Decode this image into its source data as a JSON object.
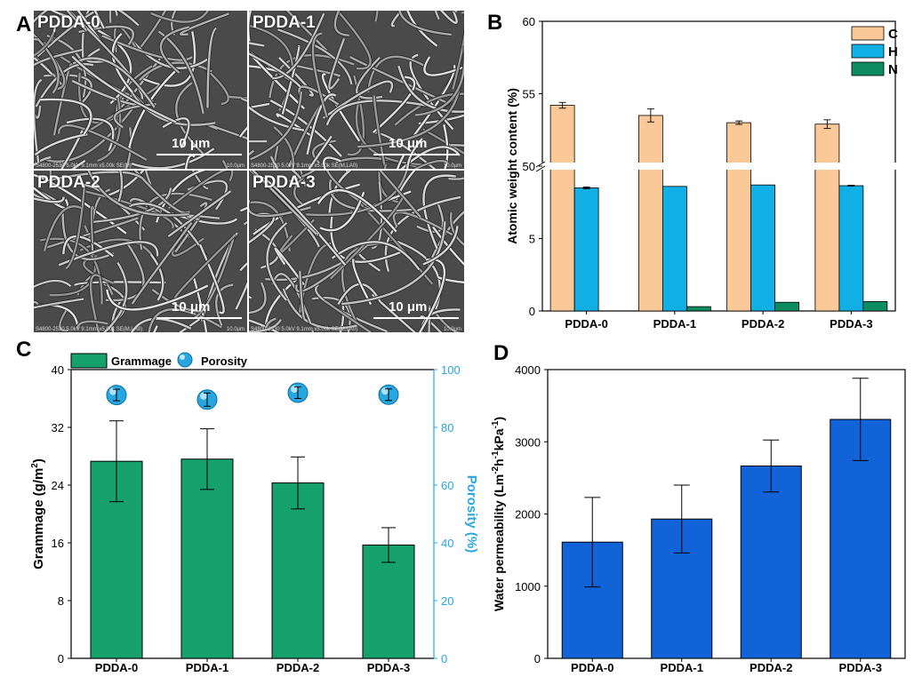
{
  "panel_letters": {
    "a": "A",
    "b": "B",
    "c": "C",
    "d": "D"
  },
  "sem": {
    "tiles": [
      {
        "label": "PDDA-0",
        "scale": "10 μm",
        "footer": "S4800-2530 5.0kV 9.1mm x5.00k SE(M)",
        "footer_right": "10.0μm"
      },
      {
        "label": "PDDA-1",
        "scale": "10 μm",
        "footer": "S4800-2530 5.0kV 9.1mm x5.00k SE(M,LA0)",
        "footer_right": "10.0μm"
      },
      {
        "label": "PDDA-2",
        "scale": "10 μm",
        "footer": "S4800-2530 5.0kV 9.1mm x5.00k SE(M,LA0)",
        "footer_right": "10.0μm"
      },
      {
        "label": "PDDA-3",
        "scale": "10 μm",
        "footer": "S4800-2530 5.0kV 9.1mm x5.00k SE(M,LA0)",
        "footer_right": "10.0μm"
      }
    ]
  },
  "chart_data": [
    {
      "id": "B",
      "type": "bar",
      "categories": [
        "PDDA-0",
        "PDDA-1",
        "PDDA-2",
        "PDDA-3"
      ],
      "ylabel": "Atomic weight content (%)",
      "broken_axis": {
        "lower": [
          0,
          10
        ],
        "upper": [
          50,
          60
        ]
      },
      "yticks_lower": [
        0,
        5
      ],
      "yticks_upper": [
        50,
        55,
        60
      ],
      "legend_position": "top-right",
      "series": [
        {
          "name": "C",
          "color": "#FBC898",
          "values": [
            54.2,
            53.5,
            53.0,
            52.9
          ],
          "errors": [
            0.2,
            0.45,
            0.12,
            0.3
          ]
        },
        {
          "name": "H",
          "color": "#10B0E6",
          "values": [
            8.5,
            8.6,
            8.7,
            8.65
          ],
          "errors": [
            0.06,
            0,
            0,
            0.03
          ]
        },
        {
          "name": "N",
          "color": "#0D8C62",
          "values": [
            0.0,
            0.3,
            0.6,
            0.65
          ],
          "errors": [
            0,
            0,
            0,
            0
          ]
        }
      ]
    },
    {
      "id": "C",
      "type": "bar",
      "categories": [
        "PDDA-0",
        "PDDA-1",
        "PDDA-2",
        "PDDA-3"
      ],
      "ylabel": "Grammage (g/m²)",
      "ylabel_main": "Grammage (g/m",
      "ylabel_sup": "2",
      "ylabel_close": ")",
      "ylim": [
        0,
        40
      ],
      "yticks": [
        0,
        8,
        16,
        24,
        32,
        40
      ],
      "y2label": "Porosity (%)",
      "y2lim": [
        0,
        100
      ],
      "y2ticks": [
        0,
        20,
        40,
        60,
        80,
        100
      ],
      "legend_position": "top-left",
      "series": [
        {
          "name": "Grammage",
          "color": "#16A06C",
          "values": [
            27.3,
            27.6,
            24.3,
            15.7
          ],
          "errors": [
            5.6,
            4.2,
            3.6,
            2.4
          ]
        },
        {
          "name": "Porosity",
          "color": "#28A6DF",
          "axis": "right",
          "values": [
            91.2,
            89.6,
            92.0,
            91.3
          ],
          "errors": [
            2.0,
            2.3,
            2.0,
            2.0
          ]
        }
      ]
    },
    {
      "id": "D",
      "type": "bar",
      "categories": [
        "PDDA-0",
        "PDDA-1",
        "PDDA-2",
        "PDDA-3"
      ],
      "ylabel": "Water permeability (Lm⁻²h⁻¹kPa⁻¹)",
      "ylabel_parts": [
        "Water permeability (Lm",
        "-2",
        "h",
        "-1",
        "kPa",
        "-1",
        ")"
      ],
      "ylim": [
        0,
        4000
      ],
      "yticks": [
        0,
        1000,
        2000,
        3000,
        4000
      ],
      "series": [
        {
          "name": "",
          "color": "#1363D8",
          "values": [
            1610,
            1930,
            2665,
            3310
          ],
          "errors": [
            620,
            470,
            360,
            570
          ]
        }
      ]
    }
  ]
}
